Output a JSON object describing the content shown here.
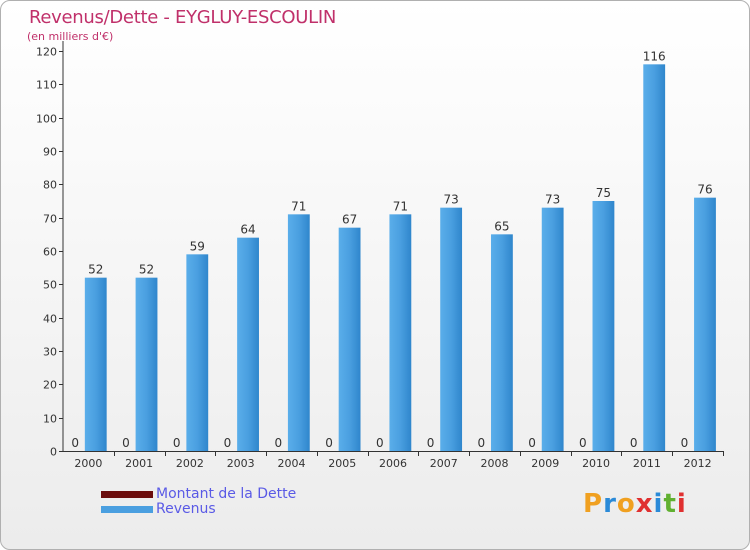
{
  "header": {
    "title": "Revenus/Dette - EYGLUY-ESCOULIN",
    "subtitle": "(en milliers d'€)"
  },
  "legend": {
    "items": [
      {
        "label": "Montant de la Dette",
        "color": "#6b0c0c"
      },
      {
        "label": "Revenus",
        "color": "#4a9fe0"
      }
    ]
  },
  "logo": {
    "text": "Proxiti",
    "colors": [
      "#f0a020",
      "#2a8ad8",
      "#f0a020",
      "#e03030",
      "#2a8ad8",
      "#60b030",
      "#e03030"
    ]
  },
  "chart_data": {
    "type": "bar",
    "title": "Revenus/Dette - EYGLUY-ESCOULIN",
    "ylabel": "(en milliers d'€)",
    "xlabel": "",
    "ylim": [
      0,
      120
    ],
    "yticks": [
      0,
      10,
      20,
      30,
      40,
      50,
      60,
      70,
      80,
      90,
      100,
      110,
      120
    ],
    "categories": [
      "2000",
      "2001",
      "2002",
      "2003",
      "2004",
      "2005",
      "2006",
      "2007",
      "2008",
      "2009",
      "2010",
      "2011",
      "2012"
    ],
    "series": [
      {
        "name": "Montant de la Dette",
        "color": "#6b0c0c",
        "values": [
          0,
          0,
          0,
          0,
          0,
          0,
          0,
          0,
          0,
          0,
          0,
          0,
          0
        ]
      },
      {
        "name": "Revenus",
        "color": "#4a9fe0",
        "values": [
          52,
          52,
          59,
          64,
          71,
          67,
          71,
          73,
          65,
          73,
          75,
          116,
          76
        ]
      }
    ],
    "grid": false,
    "legend_position": "bottom-left"
  }
}
